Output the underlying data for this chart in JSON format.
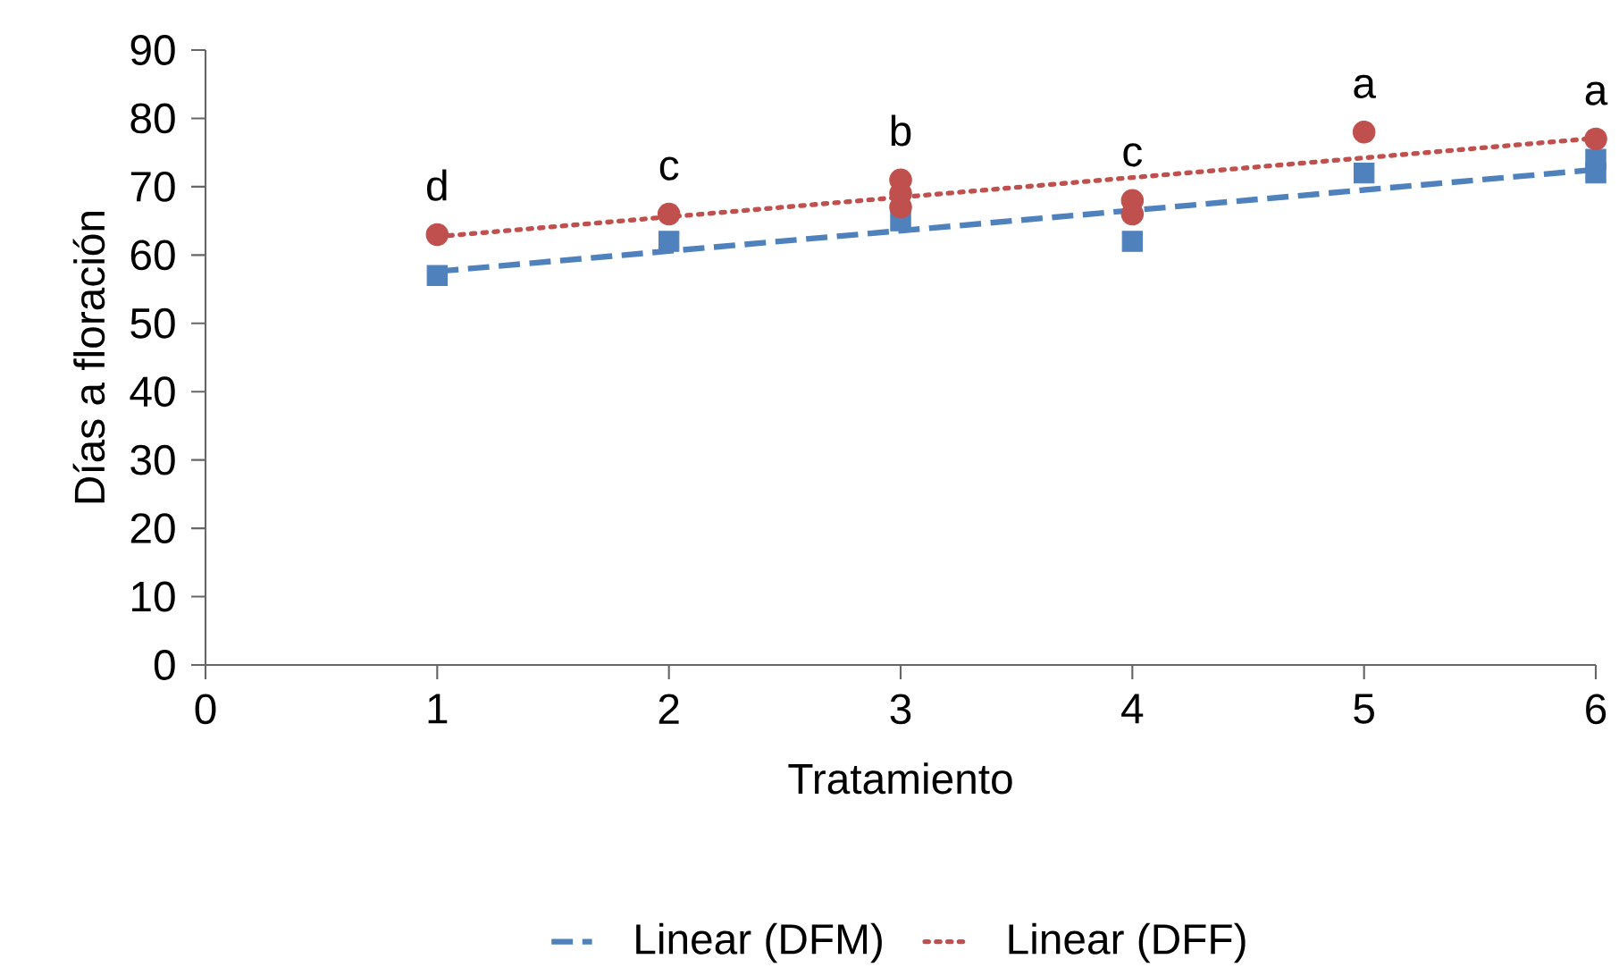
{
  "chart_data": {
    "type": "scatter",
    "xlabel": "Tratamiento",
    "ylabel": "Días a floración",
    "xlim": [
      0,
      6
    ],
    "ylim": [
      0,
      90
    ],
    "xticks": [
      0,
      1,
      2,
      3,
      4,
      5,
      6
    ],
    "yticks": [
      0,
      10,
      20,
      30,
      40,
      50,
      60,
      70,
      80,
      90
    ],
    "grid": false,
    "legend": "bottom",
    "series": [
      {
        "marker": "square",
        "color": "#4f81bd",
        "x": [
          1,
          2,
          3,
          4,
          5,
          6,
          6
        ],
        "values": [
          57,
          62,
          65,
          62,
          72,
          72,
          74
        ]
      },
      {
        "marker": "circle",
        "color": "#c0504d",
        "x": [
          1,
          2,
          3,
          3,
          3,
          4,
          4,
          5,
          6
        ],
        "values": [
          63,
          66,
          71,
          69,
          67,
          68,
          66,
          78,
          77
        ]
      },
      {
        "type": "line",
        "name": "Linear (DFM)",
        "line_style": "dashed",
        "color": "#4f81bd",
        "x": [
          1,
          6
        ],
        "values": [
          57.6,
          72.5
        ]
      },
      {
        "type": "line",
        "name": "Linear (DFF)",
        "line_style": "dotted",
        "color": "#c0504d",
        "x": [
          1,
          6
        ],
        "values": [
          62.7,
          77.1
        ]
      }
    ],
    "annotations": [
      {
        "text": "d",
        "x": 1,
        "y": 63
      },
      {
        "text": "c",
        "x": 2,
        "y": 66
      },
      {
        "text": "b",
        "x": 3,
        "y": 71
      },
      {
        "text": "c",
        "x": 4,
        "y": 68
      },
      {
        "text": "a",
        "x": 5,
        "y": 78
      },
      {
        "text": "a",
        "x": 6,
        "y": 77
      }
    ]
  }
}
